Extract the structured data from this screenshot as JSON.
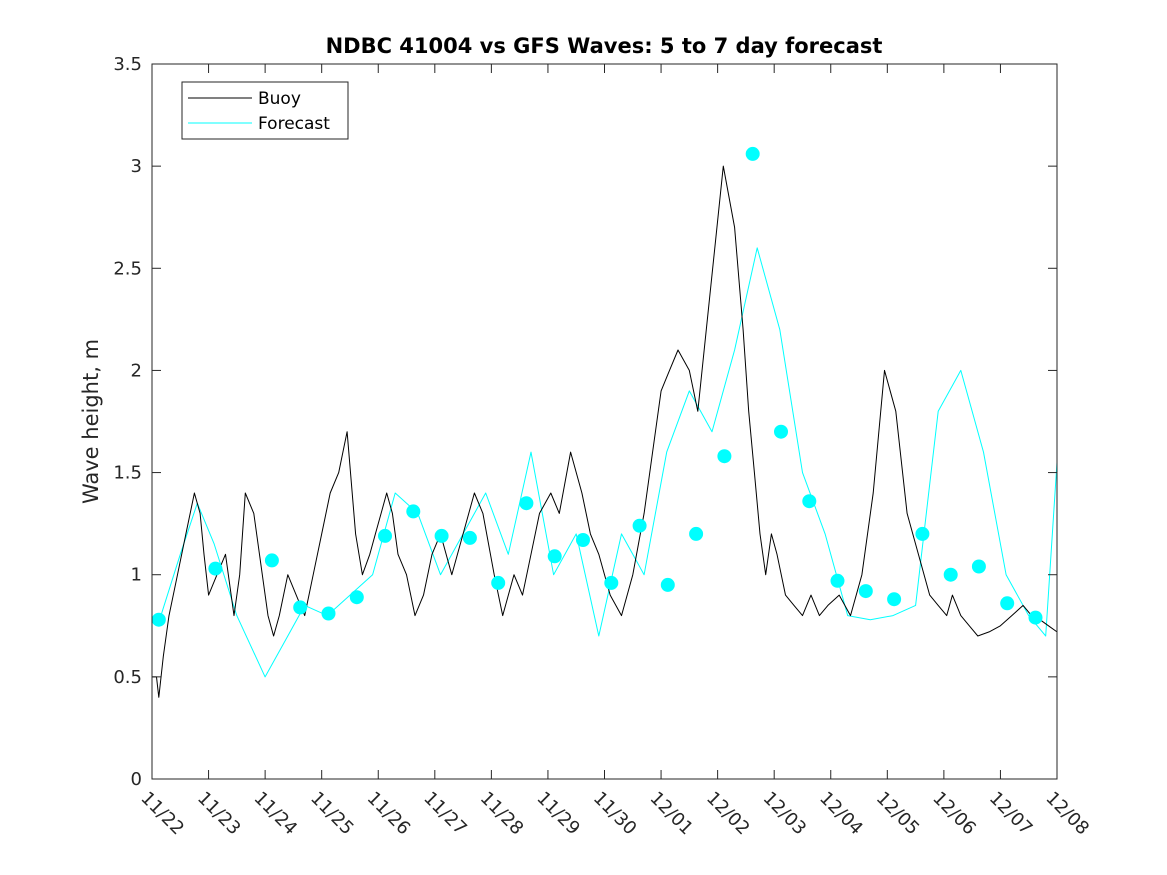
{
  "chart_data": {
    "type": "line",
    "title": "NDBC 41004 vs GFS Waves: 5 to 7 day forecast",
    "xlabel": "",
    "ylabel": "Wave height, m",
    "ylim": [
      0,
      3.5
    ],
    "yticks": [
      "0",
      "0.5",
      "1",
      "1.5",
      "2",
      "2.5",
      "3",
      "3.5"
    ],
    "xlim": [
      0,
      16
    ],
    "xtick_labels": [
      "11/22",
      "11/23",
      "11/24",
      "11/25",
      "11/26",
      "11/27",
      "11/28",
      "11/29",
      "11/30",
      "12/01",
      "12/02",
      "12/03",
      "12/04",
      "12/05",
      "12/06",
      "12/07",
      "12/08"
    ],
    "legend": {
      "location": "top-left",
      "entries": [
        "Buoy",
        "Forecast"
      ]
    },
    "colors": {
      "buoy": "#000000",
      "forecast": "#00FFFF",
      "markers": "#00FFFF"
    },
    "series": [
      {
        "name": "Buoy",
        "x": [
          0,
          0.08,
          0.12,
          0.2,
          0.3,
          0.45,
          0.6,
          0.75,
          0.85,
          0.92,
          1.0,
          1.15,
          1.3,
          1.45,
          1.55,
          1.65,
          1.8,
          1.95,
          2.05,
          2.15,
          2.25,
          2.4,
          2.55,
          2.7,
          2.85,
          3.0,
          3.15,
          3.3,
          3.45,
          3.6,
          3.72,
          3.85,
          3.95,
          4.05,
          4.15,
          4.25,
          4.35,
          4.5,
          4.65,
          4.8,
          4.95,
          5.1,
          5.3,
          5.5,
          5.7,
          5.85,
          6.05,
          6.2,
          6.4,
          6.55,
          6.7,
          6.85,
          7.05,
          7.2,
          7.4,
          7.6,
          7.75,
          7.9,
          8.1,
          8.3,
          8.5,
          8.7,
          8.85,
          9.0,
          9.15,
          9.3,
          9.5,
          9.65,
          9.8,
          9.95,
          10.1,
          10.3,
          10.45,
          10.55,
          10.65,
          10.75,
          10.85,
          10.95,
          11.05,
          11.2,
          11.35,
          11.5,
          11.65,
          11.8,
          11.95,
          12.15,
          12.35,
          12.55,
          12.75,
          12.95,
          13.15,
          13.35,
          13.55,
          13.75,
          13.9,
          14.05,
          14.15,
          14.3,
          14.45,
          14.6,
          14.8,
          15.0,
          15.2,
          15.4,
          15.55,
          15.7,
          15.85,
          16.0
        ],
        "y": [
          0.5,
          0.5,
          0.4,
          0.6,
          0.8,
          1.0,
          1.2,
          1.4,
          1.3,
          1.1,
          0.9,
          1.0,
          1.1,
          0.8,
          1.0,
          1.4,
          1.3,
          1.0,
          0.8,
          0.7,
          0.8,
          1.0,
          0.9,
          0.8,
          1.0,
          1.2,
          1.4,
          1.5,
          1.7,
          1.2,
          1.0,
          1.1,
          1.2,
          1.3,
          1.4,
          1.3,
          1.1,
          1.0,
          0.8,
          0.9,
          1.1,
          1.2,
          1.0,
          1.2,
          1.4,
          1.3,
          1.0,
          0.8,
          1.0,
          0.9,
          1.1,
          1.3,
          1.4,
          1.3,
          1.6,
          1.4,
          1.2,
          1.1,
          0.9,
          0.8,
          1.0,
          1.3,
          1.6,
          1.9,
          2.0,
          2.1,
          2.0,
          1.8,
          2.2,
          2.6,
          3.0,
          2.7,
          2.2,
          1.8,
          1.5,
          1.2,
          1.0,
          1.2,
          1.1,
          0.9,
          0.85,
          0.8,
          0.9,
          0.8,
          0.85,
          0.9,
          0.8,
          1.0,
          1.4,
          2.0,
          1.8,
          1.3,
          1.1,
          0.9,
          0.85,
          0.8,
          0.9,
          0.8,
          0.75,
          0.7,
          0.72,
          0.75,
          0.8,
          0.85,
          0.8,
          0.78,
          0.75,
          0.72
        ]
      },
      {
        "name": "Forecast",
        "x": [
          0.1,
          0.5,
          0.8,
          1.1,
          1.5,
          2.0,
          2.4,
          2.7,
          3.1,
          3.5,
          3.9,
          4.3,
          4.7,
          5.1,
          5.5,
          5.9,
          6.3,
          6.7,
          7.1,
          7.5,
          7.9,
          8.3,
          8.7,
          9.1,
          9.5,
          9.9,
          10.3,
          10.7,
          11.1,
          11.5,
          11.9,
          12.3,
          12.7,
          13.1,
          13.5,
          13.9,
          14.3,
          14.7,
          15.1,
          15.5,
          15.8,
          16.0
        ],
        "y": [
          0.75,
          1.1,
          1.35,
          1.15,
          0.8,
          0.5,
          0.7,
          0.85,
          0.8,
          0.9,
          1.0,
          1.4,
          1.3,
          1.0,
          1.2,
          1.4,
          1.1,
          1.6,
          1.0,
          1.2,
          0.7,
          1.2,
          1.0,
          1.6,
          1.9,
          1.7,
          2.1,
          2.6,
          2.2,
          1.5,
          1.2,
          0.8,
          0.78,
          0.8,
          0.85,
          1.8,
          2.0,
          1.6,
          1.0,
          0.8,
          0.7,
          1.55
        ]
      }
    ],
    "markers": {
      "name": "Forecast points",
      "x": [
        0.12,
        1.12,
        2.12,
        2.62,
        3.12,
        3.62,
        4.12,
        4.62,
        5.12,
        5.62,
        6.12,
        6.62,
        7.12,
        7.62,
        8.12,
        8.62,
        9.12,
        9.62,
        10.12,
        10.62,
        11.12,
        11.62,
        12.12,
        12.62,
        13.12,
        13.62,
        14.12,
        14.62,
        15.12,
        15.62
      ],
      "y": [
        0.78,
        1.03,
        1.07,
        0.84,
        0.81,
        0.89,
        1.19,
        1.31,
        1.19,
        1.18,
        0.96,
        1.35,
        1.09,
        1.17,
        0.96,
        1.24,
        0.95,
        1.2,
        1.58,
        3.06,
        1.7,
        1.36,
        0.97,
        0.92,
        0.88,
        1.2,
        1.0,
        1.04,
        0.86,
        0.79
      ]
    }
  }
}
